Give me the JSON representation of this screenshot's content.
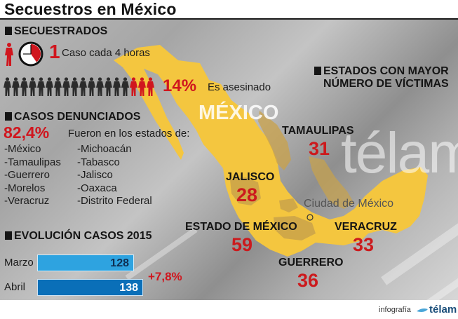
{
  "header": {
    "title": "Secuestros en México"
  },
  "secuestrados": {
    "heading": "SECUESTRADOS",
    "clock_icon": "clock-icon",
    "rate_number": "1",
    "rate_text": "Caso cada 4 horas",
    "people_total": 18,
    "people_red": 3,
    "killed_percent": "14%",
    "killed_text": "Es asesinado"
  },
  "denunciados": {
    "heading": "CASOS DENUNCIADOS",
    "percent": "82,4%",
    "text": "Fueron en los estados de:",
    "states_col1": [
      "-México",
      "-Tamaulipas",
      "-Guerrero",
      "-Morelos",
      "-Veracruz"
    ],
    "states_col2": [
      "-Michoacán",
      "-Tabasco",
      "-Jalisco",
      "-Oaxaca",
      "-Distrito Federal"
    ]
  },
  "evolucion": {
    "heading": "EVOLUCIÓN CASOS 2015",
    "rows": [
      {
        "label": "Marzo",
        "value": "128",
        "color": "#2ea3e0"
      },
      {
        "label": "Abril",
        "value": "138",
        "color": "#0a6fb8"
      }
    ],
    "change": "+7,8%"
  },
  "map": {
    "country_label": "MÉXICO",
    "heading_line1": "ESTADOS CON MAYOR",
    "heading_line2": "NÚMERO DE VÍCTIMAS",
    "capital_label": "Ciudad de México",
    "states": [
      {
        "name": "TAMAULIPAS",
        "victims": "31"
      },
      {
        "name": "JALISCO",
        "victims": "28"
      },
      {
        "name": "ESTADO DE MÉXICO",
        "victims": "59"
      },
      {
        "name": "VERACRUZ",
        "victims": "33"
      },
      {
        "name": "GUERRERO",
        "victims": "36"
      }
    ],
    "colors": {
      "country": "#f4c63f",
      "highlight": "#c9a24a"
    }
  },
  "watermark": "télam",
  "footer": {
    "credit": "infografía",
    "brand": "télam"
  }
}
